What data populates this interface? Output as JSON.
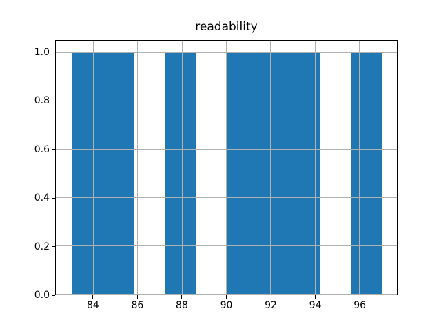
{
  "figure": {
    "background": "#ffffff"
  },
  "chart_data": {
    "type": "histogram",
    "title": "readability",
    "xlabel": "",
    "ylabel": "",
    "bin_edges": [
      83.0,
      84.4,
      85.8,
      87.2,
      88.6,
      90.0,
      91.4,
      92.8,
      94.2,
      95.6,
      97.0
    ],
    "counts": [
      1,
      1,
      0,
      1,
      0,
      1,
      1,
      1,
      0,
      1
    ],
    "bar_color": "#1f77b4",
    "xlim": [
      82.3,
      97.7
    ],
    "ylim": [
      0,
      1.05
    ],
    "xtick_values": [
      84,
      86,
      88,
      90,
      92,
      94,
      96
    ],
    "xtick_labels": [
      "84",
      "86",
      "88",
      "90",
      "92",
      "94",
      "96"
    ],
    "ytick_values": [
      0.0,
      0.2,
      0.4,
      0.6,
      0.8,
      1.0
    ],
    "ytick_labels": [
      "0.0",
      "0.2",
      "0.4",
      "0.6",
      "0.8",
      "1.0"
    ],
    "grid": true,
    "grid_color": "#b0b0b0",
    "spine_color": "#000000",
    "tick_color": "#000000",
    "legend": null
  }
}
